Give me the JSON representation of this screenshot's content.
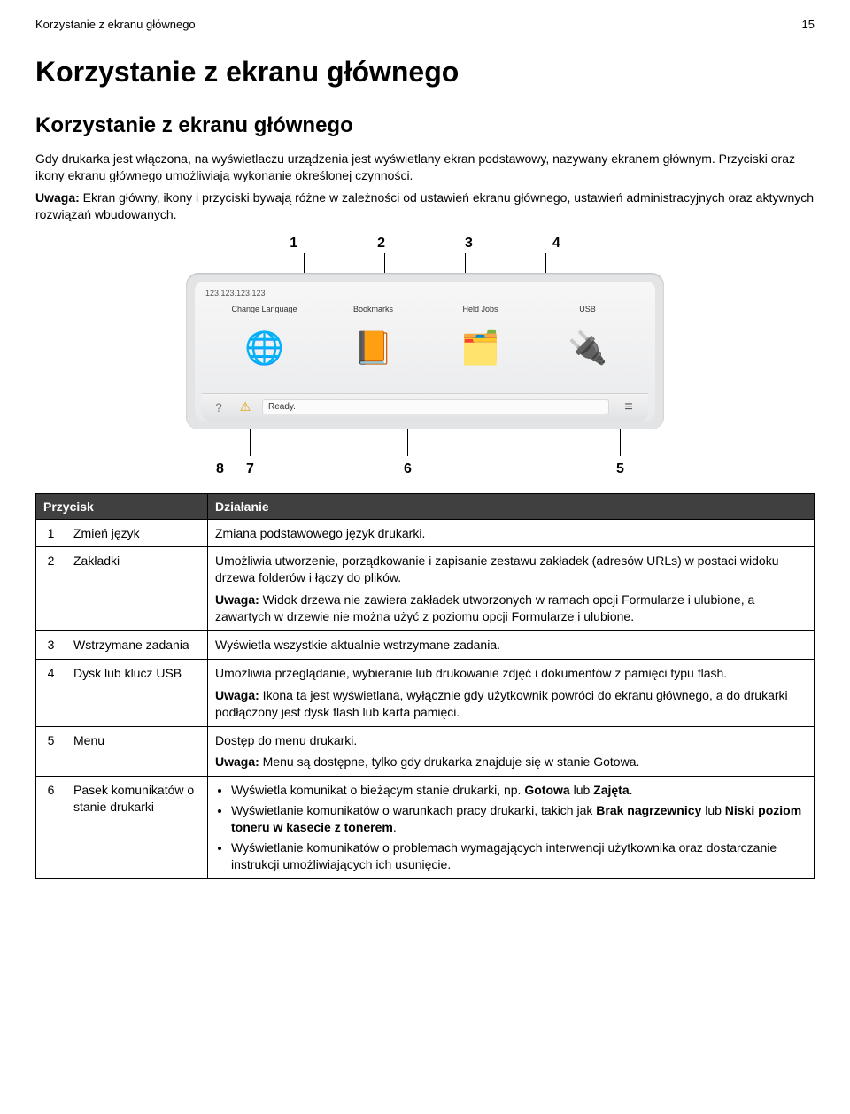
{
  "header": {
    "running_title": "Korzystanie z ekranu głównego",
    "page_number": "15"
  },
  "titles": {
    "section": "Korzystanie z ekranu głównego",
    "subsection": "Korzystanie z ekranu głównego"
  },
  "paragraphs": {
    "intro": "Gdy drukarka jest włączona, na wyświetlaczu urządzenia jest wyświetlany ekran podstawowy, nazywany ekranem głównym. Przyciski oraz ikony ekranu głównego umożliwiają wykonanie określonej czynności.",
    "note_label": "Uwaga:",
    "note_body": " Ekran główny, ikony i przyciski bywają różne w zależności od ustawień ekranu głównego, ustawień administracyjnych oraz aktywnych rozwiązań wbudowanych."
  },
  "figure": {
    "top_callouts": [
      "1",
      "2",
      "3",
      "4"
    ],
    "bottom_callouts": {
      "c5": "5",
      "c6": "6",
      "c7": "7",
      "c8": "8"
    },
    "ip": "123.123.123.123",
    "icons": [
      {
        "label": "Change Language",
        "glyph": "🌐",
        "bg": "#ffffff"
      },
      {
        "label": "Bookmarks",
        "glyph": "📙",
        "bg": "#ffffff"
      },
      {
        "label": "Held Jobs",
        "glyph": "🗂️",
        "bg": "#ffffff"
      },
      {
        "label": "USB",
        "glyph": "🔌",
        "bg": "#ffffff"
      }
    ],
    "status": {
      "help_icon": "?",
      "warn_icon": "⚠",
      "ready_text": "Ready.",
      "menu_glyph": "≡"
    }
  },
  "table": {
    "headers": {
      "col1": "Przycisk",
      "col2": "Działanie"
    },
    "rows": [
      {
        "num": "1",
        "name": "Zmień język",
        "desc_html": "Zmiana podstawowego język drukarki."
      },
      {
        "num": "2",
        "name": "Zakładki",
        "desc_html": "<div class=\"desc-para\">Umożliwia utworzenie, porządkowanie i zapisanie zestawu zakładek (adresów URLs) w postaci widoku drzewa folderów i łączy do plików.</div><div class=\"desc-para\"><span class=\"bold\">Uwaga:</span> Widok drzewa nie zawiera zakładek utworzonych w ramach opcji Formularze i ulubione, a zawartych w drzewie nie można użyć z poziomu opcji Formularze i ulubione.</div>"
      },
      {
        "num": "3",
        "name": "Wstrzymane zadania",
        "desc_html": "Wyświetla wszystkie aktualnie wstrzymane zadania."
      },
      {
        "num": "4",
        "name": "Dysk lub klucz USB",
        "desc_html": "<div class=\"desc-para\">Umożliwia przeglądanie, wybieranie lub drukowanie zdjęć i dokumentów z pamięci typu flash.</div><div class=\"desc-para\"><span class=\"bold\">Uwaga:</span> Ikona ta jest wyświetlana, wyłącznie gdy użytkownik powróci do ekranu głównego, a do drukarki podłączony jest dysk flash lub karta pamięci.</div>"
      },
      {
        "num": "5",
        "name": "Menu",
        "desc_html": "<div class=\"desc-para\">Dostęp do menu drukarki.</div><div class=\"desc-para\"><span class=\"bold\">Uwaga:</span> Menu są dostępne, tylko gdy drukarka znajduje się w stanie Gotowa.</div>"
      },
      {
        "num": "6",
        "name": "Pasek komunikatów o stanie drukarki",
        "desc_html": "<ul class=\"bullets\"><li>Wyświetla komunikat o bieżącym stanie drukarki, np. <span class=\"bold\">Gotowa</span> lub <span class=\"bold\">Zajęta</span>.</li><li>Wyświetlanie komunikatów o warunkach pracy drukarki, takich jak <span class=\"bold\">Brak nagrzewnicy</span> lub <span class=\"bold\">Niski poziom toneru w kasecie z tonerem</span>.</li><li>Wyświetlanie komunikatów o problemach wymagających interwencji użytkownika oraz dostarczanie instrukcji umożliwiających ich usunięcie.</li></ul>"
      }
    ]
  }
}
